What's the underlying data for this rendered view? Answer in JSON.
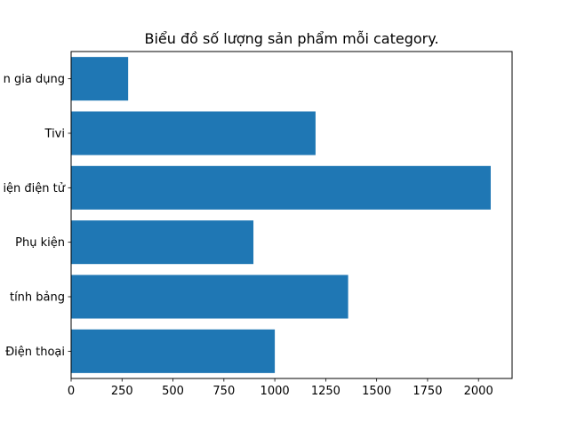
{
  "chart_data": {
    "type": "bar",
    "orientation": "horizontal",
    "title": "Biểu đồ số lượng sản phẩm mỗi category.",
    "categories": [
      "Điện thoại",
      "Máy tính bảng",
      "Phụ kiện",
      "Thiết bị điện điện tử",
      "Tivi",
      "Đồ gia dụng"
    ],
    "category_labels_visible": [
      "Điện thoại",
      "tính bảng",
      "Phụ kiện",
      "iện điện tử",
      "Tivi",
      "n gia dụng"
    ],
    "values": [
      1000,
      1360,
      895,
      2060,
      1200,
      280
    ],
    "xlabel": "",
    "ylabel": "",
    "xlim": [
      0,
      2165
    ],
    "xticks": [
      0,
      250,
      500,
      750,
      1000,
      1250,
      1500,
      1750,
      2000
    ],
    "xtick_labels": [
      "0",
      "250",
      "500",
      "750",
      "1000",
      "1250",
      "1500",
      "1750",
      "2000"
    ],
    "bar_color": "#1f77b4",
    "grid": false,
    "legend": "none"
  }
}
